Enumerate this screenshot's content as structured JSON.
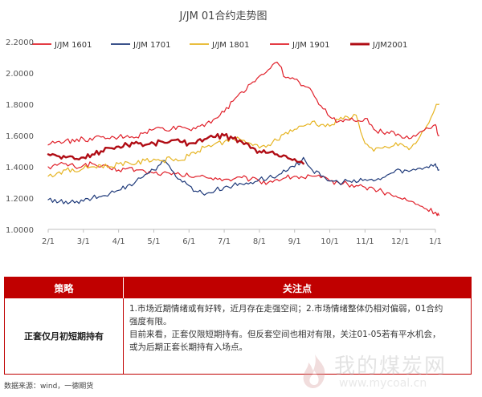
{
  "chart_data": {
    "type": "line",
    "title": "J/JM 01合约走势图",
    "xlabel": "",
    "ylabel": "",
    "ylim": [
      1.0,
      2.2
    ],
    "y_ticks": [
      "1.0000",
      "1.2000",
      "1.4000",
      "1.6000",
      "1.8000",
      "2.0000",
      "2.2000"
    ],
    "x_ticks": [
      "2/1",
      "3/1",
      "4/1",
      "5/1",
      "6/1",
      "7/1",
      "8/1",
      "9/1",
      "10/1",
      "11/1",
      "12/1",
      "1/1"
    ],
    "grid": false,
    "legend_position": "top",
    "series": [
      {
        "name": "J/JM 1601",
        "color": "#e0202a",
        "width": 1.2,
        "x": [
          0,
          0.25,
          0.5,
          0.75,
          1,
          1.25,
          1.5,
          1.75,
          2,
          2.25,
          2.5,
          2.75,
          3,
          3.25,
          3.5,
          3.75,
          4,
          4.25,
          4.5,
          4.75,
          5,
          5.25,
          5.5,
          5.75,
          6,
          6.25,
          6.5,
          6.75,
          7,
          7.25,
          7.5,
          7.75,
          8,
          8.25,
          8.5,
          8.75,
          9,
          9.25,
          9.5,
          9.75,
          10,
          10.25,
          10.5,
          10.75,
          11,
          11.1
        ],
        "y": [
          1.4,
          1.41,
          1.42,
          1.4,
          1.41,
          1.42,
          1.4,
          1.39,
          1.38,
          1.39,
          1.38,
          1.37,
          1.36,
          1.36,
          1.35,
          1.35,
          1.34,
          1.34,
          1.33,
          1.33,
          1.32,
          1.32,
          1.33,
          1.32,
          1.31,
          1.3,
          1.32,
          1.33,
          1.34,
          1.33,
          1.34,
          1.33,
          1.31,
          1.3,
          1.29,
          1.28,
          1.27,
          1.26,
          1.24,
          1.22,
          1.2,
          1.18,
          1.16,
          1.13,
          1.11,
          1.09
        ]
      },
      {
        "name": "J/JM 1701",
        "color": "#1f3a7a",
        "width": 1.2,
        "x": [
          0,
          0.25,
          0.5,
          0.75,
          1,
          1.25,
          1.5,
          1.75,
          2,
          2.25,
          2.5,
          2.75,
          3,
          3.25,
          3.5,
          3.75,
          4,
          4.25,
          4.5,
          4.75,
          5,
          5.25,
          5.5,
          5.75,
          6,
          6.25,
          6.5,
          6.75,
          7,
          7.25,
          7.5,
          7.75,
          8,
          8.25,
          8.5,
          8.75,
          9,
          9.25,
          9.5,
          9.75,
          10,
          10.25,
          10.5,
          10.75,
          11,
          11.1
        ],
        "y": [
          1.19,
          1.17,
          1.18,
          1.17,
          1.18,
          1.2,
          1.21,
          1.23,
          1.25,
          1.28,
          1.31,
          1.35,
          1.38,
          1.44,
          1.38,
          1.32,
          1.28,
          1.24,
          1.23,
          1.25,
          1.27,
          1.28,
          1.29,
          1.3,
          1.32,
          1.33,
          1.34,
          1.37,
          1.4,
          1.46,
          1.38,
          1.34,
          1.31,
          1.3,
          1.31,
          1.3,
          1.32,
          1.31,
          1.33,
          1.36,
          1.38,
          1.37,
          1.39,
          1.4,
          1.42,
          1.38
        ]
      },
      {
        "name": "J/JM 1801",
        "color": "#e6b422",
        "width": 1.2,
        "x": [
          0,
          0.25,
          0.5,
          0.75,
          1,
          1.25,
          1.5,
          1.75,
          2,
          2.25,
          2.5,
          2.75,
          3,
          3.25,
          3.5,
          3.75,
          4,
          4.25,
          4.5,
          4.75,
          5,
          5.25,
          5.5,
          5.75,
          6,
          6.25,
          6.5,
          6.75,
          7,
          7.25,
          7.5,
          7.75,
          8,
          8.25,
          8.5,
          8.75,
          9,
          9.25,
          9.5,
          9.75,
          10,
          10.25,
          10.5,
          10.75,
          11,
          11.1
        ],
        "y": [
          1.34,
          1.36,
          1.38,
          1.37,
          1.39,
          1.4,
          1.41,
          1.4,
          1.42,
          1.43,
          1.42,
          1.44,
          1.45,
          1.44,
          1.45,
          1.44,
          1.47,
          1.5,
          1.53,
          1.55,
          1.56,
          1.58,
          1.57,
          1.55,
          1.52,
          1.54,
          1.57,
          1.62,
          1.64,
          1.66,
          1.69,
          1.67,
          1.66,
          1.7,
          1.72,
          1.73,
          1.55,
          1.5,
          1.52,
          1.53,
          1.55,
          1.51,
          1.57,
          1.66,
          1.78,
          1.8
        ]
      },
      {
        "name": "J/JM 1901",
        "color": "#e0202a",
        "width": 1.2,
        "x": [
          0,
          0.25,
          0.5,
          0.75,
          1,
          1.25,
          1.5,
          1.75,
          2,
          2.25,
          2.5,
          2.75,
          3,
          3.25,
          3.5,
          3.75,
          4,
          4.25,
          4.5,
          4.75,
          5,
          5.25,
          5.5,
          5.75,
          6,
          6.25,
          6.5,
          6.75,
          7,
          7.25,
          7.5,
          7.75,
          8,
          8.25,
          8.5,
          8.75,
          9,
          9.25,
          9.5,
          9.75,
          10,
          10.25,
          10.5,
          10.75,
          11,
          11.1
        ],
        "y": [
          1.54,
          1.56,
          1.57,
          1.56,
          1.58,
          1.57,
          1.59,
          1.58,
          1.59,
          1.6,
          1.59,
          1.62,
          1.64,
          1.65,
          1.64,
          1.66,
          1.64,
          1.66,
          1.68,
          1.71,
          1.75,
          1.82,
          1.88,
          1.93,
          1.98,
          2.02,
          2.07,
          1.97,
          1.96,
          1.92,
          1.88,
          1.79,
          1.72,
          1.69,
          1.7,
          1.69,
          1.71,
          1.64,
          1.62,
          1.63,
          1.6,
          1.58,
          1.61,
          1.65,
          1.67,
          1.6
        ]
      },
      {
        "name": "J/JM2001",
        "color": "#b00c14",
        "width": 2.4,
        "x": [
          0,
          0.25,
          0.5,
          0.75,
          1,
          1.25,
          1.5,
          1.75,
          2,
          2.25,
          2.5,
          2.75,
          3,
          3.25,
          3.5,
          3.75,
          4,
          4.25,
          4.5,
          4.75,
          5,
          5.25,
          5.5,
          5.75,
          6,
          6.25,
          6.5,
          6.75,
          7,
          7.25
        ],
        "y": [
          1.48,
          1.47,
          1.46,
          1.45,
          1.46,
          1.48,
          1.5,
          1.52,
          1.53,
          1.54,
          1.56,
          1.54,
          1.55,
          1.56,
          1.57,
          1.56,
          1.55,
          1.57,
          1.58,
          1.59,
          1.6,
          1.58,
          1.56,
          1.52,
          1.5,
          1.49,
          1.48,
          1.47,
          1.45,
          1.42
        ]
      }
    ]
  },
  "table": {
    "header_strategy": "策略",
    "header_focus": "关注点",
    "strategy_text": "正套仅月初短期持有",
    "focus_lines": [
      "1.市场近期情绪或有好转，近月存在走强空间；2.市场情绪整体仍相对偏弱，01合约",
      "强度有限。",
      "目前来看，正套仅限短期持有。但反套空间也相对有限，关注01-05若有平水机会，",
      "或为后期正套长期持有入场点。"
    ]
  },
  "footer": {
    "source": "数据来源：wind，一德期货"
  },
  "watermark": {
    "cn": "我的煤炭网",
    "url": "www.mycoal.cn"
  }
}
